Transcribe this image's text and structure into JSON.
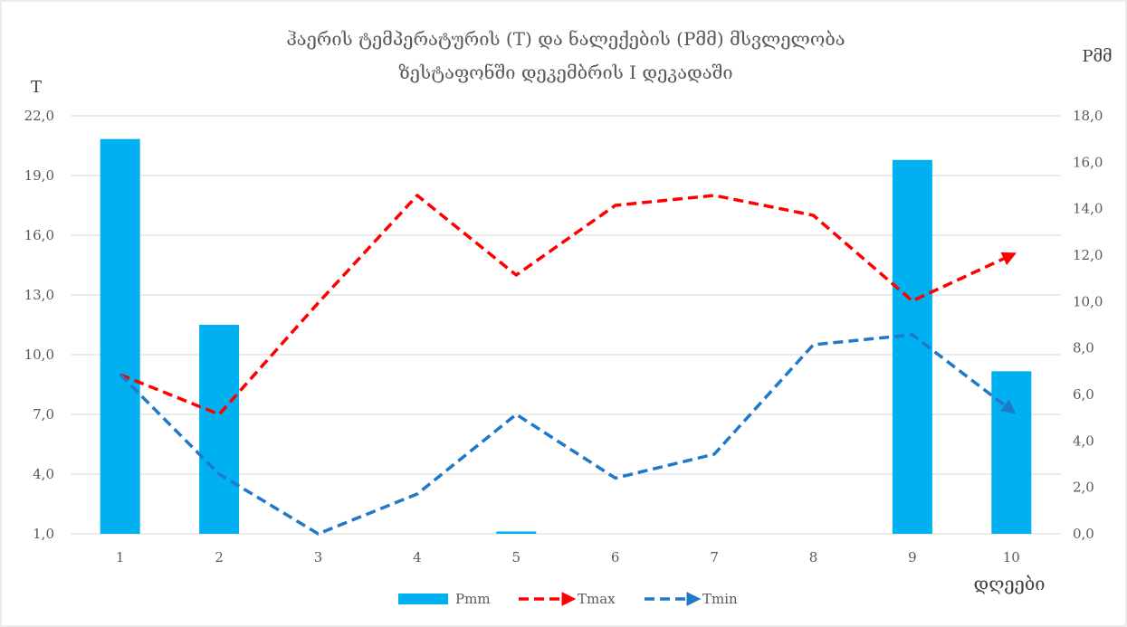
{
  "chart_data": {
    "type": "bar",
    "title_line1": "ჰაერის ტემპერატურის (T) და ნალექების (Pმმ)  მსვლელობა",
    "title_line2": "ზესტაფონში დეკემბრის I დეკადაში",
    "ylabel_left": "T",
    "ylabel_right": "Pმმ",
    "xlabel": "დღეები",
    "categories": [
      "1",
      "2",
      "3",
      "4",
      "5",
      "6",
      "7",
      "8",
      "9",
      "10"
    ],
    "y_left": {
      "min": 1,
      "max": 22,
      "ticks": [
        "1,0",
        "4,0",
        "7,0",
        "10,0",
        "13,0",
        "16,0",
        "19,0",
        "22,0"
      ]
    },
    "y_right": {
      "min": 0,
      "max": 18,
      "ticks": [
        "0,0",
        "2,0",
        "4,0",
        "6,0",
        "8,0",
        "10,0",
        "12,0",
        "14,0",
        "16,0",
        "18,0"
      ]
    },
    "grid": true,
    "legend_position": "bottom",
    "series": [
      {
        "name": "Pmm",
        "kind": "bar",
        "axis": "right",
        "color": "#00b0f0",
        "values": [
          17.0,
          9.0,
          0,
          0,
          0.1,
          0,
          0,
          0,
          16.1,
          7.0
        ]
      },
      {
        "name": "Tmax",
        "kind": "line-dashed-arrow",
        "axis": "left",
        "color": "#ff0000",
        "values": [
          9.0,
          7.0,
          12.6,
          18.0,
          14.0,
          17.5,
          18.0,
          17.0,
          12.7,
          15.0
        ]
      },
      {
        "name": "Tmin",
        "kind": "line-dashed-arrow",
        "axis": "left",
        "color": "#1f78c8",
        "values": [
          9.0,
          4.0,
          1.0,
          3.0,
          7.0,
          3.8,
          5.0,
          10.5,
          11.0,
          7.2
        ]
      }
    ]
  }
}
